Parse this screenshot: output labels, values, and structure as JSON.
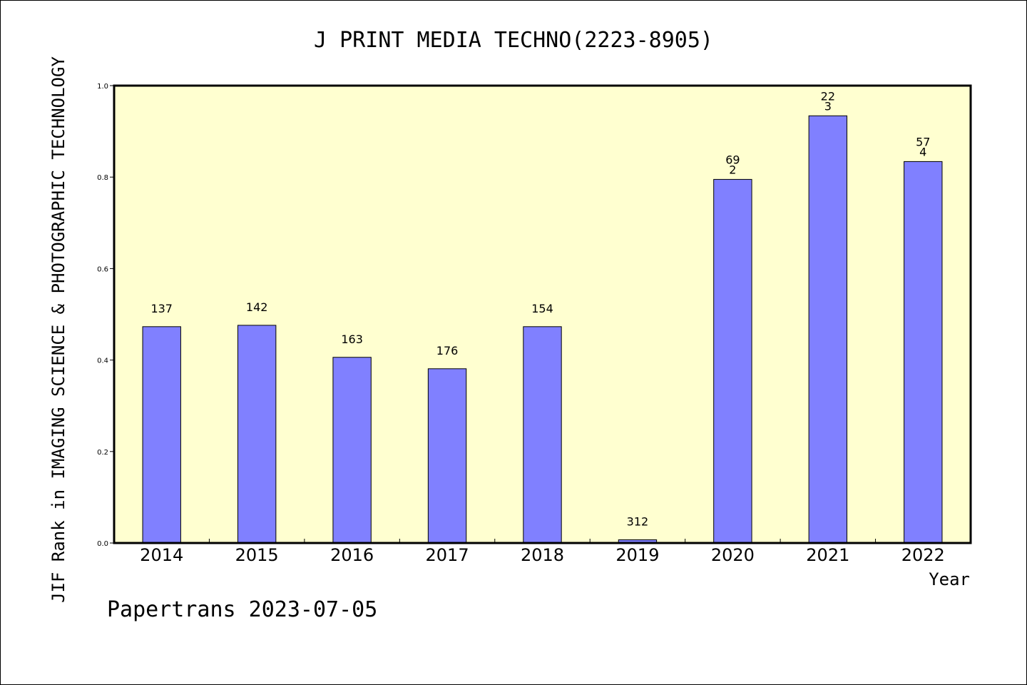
{
  "chart_data": {
    "type": "bar",
    "title": "J PRINT MEDIA TECHNO(2223-8905)",
    "xlabel": "Year",
    "ylabel": "JIF Rank in IMAGING SCIENCE & PHOTOGRAPHIC TECHNOLOGY",
    "ylim": [
      0,
      1.0
    ],
    "yticks": [
      "0.0",
      "0.2",
      "0.4",
      "0.6",
      "0.8",
      "1.0"
    ],
    "grid": false,
    "categories": [
      "2014",
      "2015",
      "2016",
      "2017",
      "2018",
      "2019",
      "2020",
      "2021",
      "2022"
    ],
    "values": [
      0.473,
      0.476,
      0.406,
      0.381,
      0.473,
      0.007,
      0.795,
      0.934,
      0.834
    ],
    "bar_labels": [
      [
        "137"
      ],
      [
        "142"
      ],
      [
        "163"
      ],
      [
        "176"
      ],
      [
        "154"
      ],
      [
        "312"
      ],
      [
        "69",
        "2"
      ],
      [
        "22",
        "3"
      ],
      [
        "57",
        "4"
      ]
    ],
    "colors": {
      "bar": "#8080ff",
      "plot_background": "#ffffd0",
      "axis": "#000000"
    }
  },
  "footer": {
    "credit": "Papertrans 2023-07-05"
  }
}
